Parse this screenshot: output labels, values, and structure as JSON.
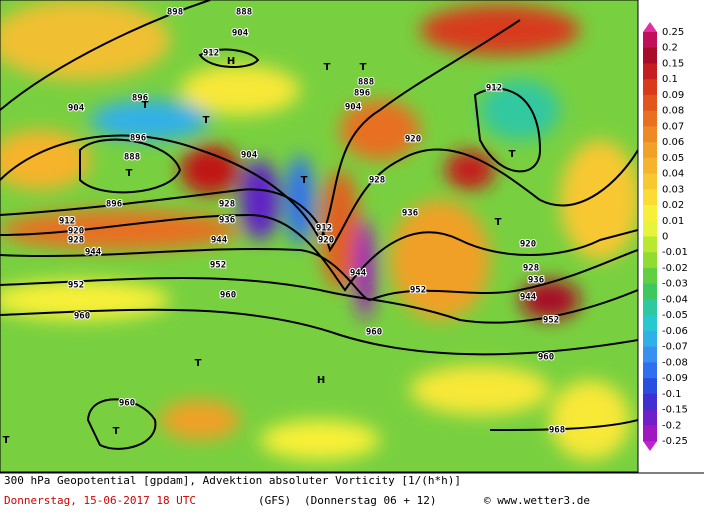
{
  "header": {
    "title": "300 hPa Geopotential [gpdam], Advektion absoluter Vorticity [1/(h*h)]",
    "date": "Donnerstag, 15-06-2017  18 UTC",
    "model": "(GFS)",
    "run": "(Donnerstag 06 + 12)",
    "source": "© www.wetter3.de"
  },
  "colorbar": {
    "labels": [
      "0.25",
      "0.2",
      "0.15",
      "0.1",
      "0.09",
      "0.08",
      "0.07",
      "0.06",
      "0.05",
      "0.04",
      "0.03",
      "0.02",
      "0.01",
      "0",
      "-0.01",
      "-0.02",
      "-0.03",
      "-0.04",
      "-0.05",
      "-0.06",
      "-0.07",
      "-0.08",
      "-0.09",
      "-0.1",
      "-0.15",
      "-0.2",
      "-0.25"
    ],
    "colors": [
      "#c0105a",
      "#a80c28",
      "#c41e1e",
      "#d83a1a",
      "#e0561c",
      "#e87020",
      "#ee8a24",
      "#f2a028",
      "#f6b42c",
      "#f8c830",
      "#fadc34",
      "#f8f038",
      "#e8f43c",
      "#b8e830",
      "#90dc30",
      "#60d040",
      "#40c860",
      "#30c8a0",
      "#28c8d0",
      "#30b0e8",
      "#3890f0",
      "#3070f0",
      "#2850e0",
      "#4030d0",
      "#7020c8",
      "#a018c0"
    ]
  },
  "map": {
    "labels": [
      "898",
      "888",
      "904",
      "912",
      "H",
      "912",
      "T",
      "T",
      "888",
      "896",
      "904",
      "920",
      "904",
      "896",
      "T",
      "T",
      "896",
      "888",
      "T",
      "904",
      "T",
      "928",
      "896",
      "912",
      "920",
      "928",
      "928",
      "936",
      "944",
      "912",
      "920",
      "936",
      "T",
      "T",
      "920",
      "928",
      "936",
      "944",
      "952",
      "944",
      "952",
      "944",
      "952",
      "952",
      "960",
      "960",
      "960",
      "960",
      "T",
      "H",
      "960",
      "T",
      "T",
      "968"
    ]
  }
}
